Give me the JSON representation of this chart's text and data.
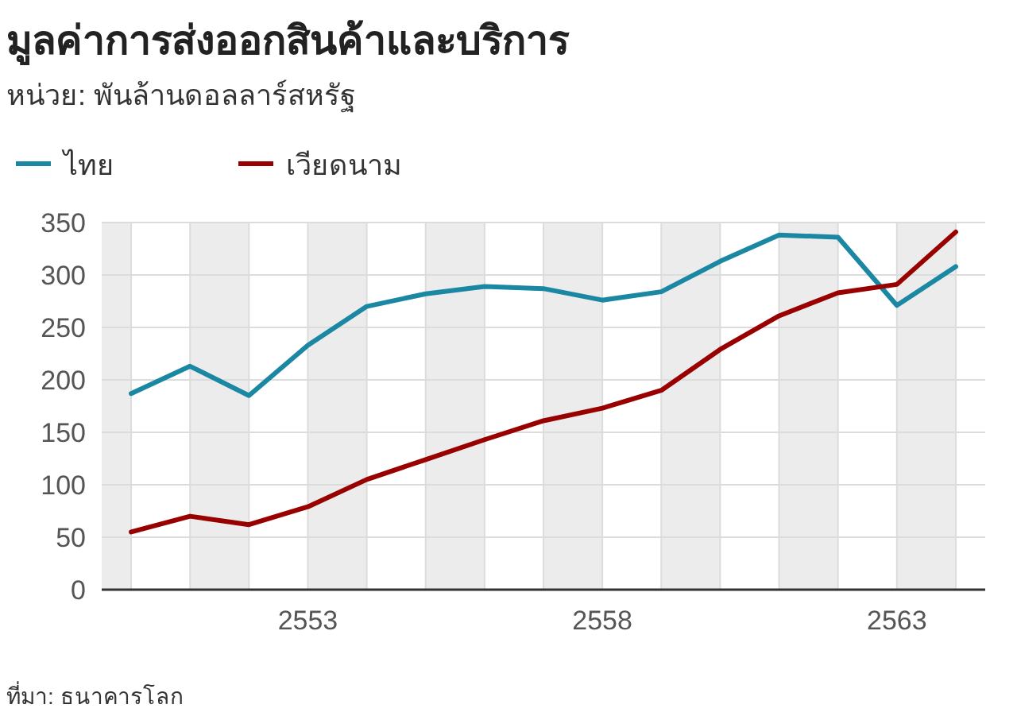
{
  "chart_data": {
    "type": "line",
    "title": "มูลค่าการส่งออกสินค้าและบริการ",
    "subtitle": "หน่วย: พันล้านดอลลาร์สหรัฐ",
    "x": [
      2550,
      2551,
      2552,
      2553,
      2554,
      2555,
      2556,
      2557,
      2558,
      2559,
      2560,
      2561,
      2562,
      2563,
      2564
    ],
    "series": [
      {
        "name": "ไทย",
        "color": "#1a87a3",
        "values": [
          187,
          213,
          185,
          233,
          270,
          282,
          289,
          287,
          276,
          284,
          313,
          338,
          336,
          271,
          308
        ]
      },
      {
        "name": "เวียดนาม",
        "color": "#990000",
        "values": [
          55,
          70,
          62,
          79,
          105,
          124,
          143,
          161,
          173,
          190,
          229,
          261,
          283,
          291,
          341
        ]
      }
    ],
    "xlim": [
      2549.5,
      2564.5
    ],
    "xticks": [
      {
        "value": 2550,
        "label": null
      },
      {
        "value": 2551,
        "label": null
      },
      {
        "value": 2552,
        "label": null
      },
      2553,
      {
        "value": 2554,
        "label": null
      },
      {
        "value": 2555,
        "label": null
      },
      {
        "value": 2556,
        "label": null
      },
      {
        "value": 2557,
        "label": null
      },
      2558,
      {
        "value": 2559,
        "label": null
      },
      {
        "value": 2560,
        "label": null
      },
      {
        "value": 2561,
        "label": null
      },
      {
        "value": 2562,
        "label": null
      },
      2563,
      {
        "value": 2564,
        "label": null
      }
    ],
    "ylim": [
      0,
      350
    ],
    "yticks": [
      0,
      50,
      100,
      150,
      200,
      250,
      300,
      350
    ],
    "bands": [
      {
        "axis": "x",
        "from": 2549.5,
        "to": 2550,
        "color": "#ececec"
      },
      {
        "axis": "x",
        "from": 2551,
        "to": 2552,
        "color": "#ececec"
      },
      {
        "axis": "x",
        "from": 2553,
        "to": 2554,
        "color": "#ececec"
      },
      {
        "axis": "x",
        "from": 2555,
        "to": 2556,
        "color": "#ececec"
      },
      {
        "axis": "x",
        "from": 2557,
        "to": 2558,
        "color": "#ececec"
      },
      {
        "axis": "x",
        "from": 2559,
        "to": 2560,
        "color": "#ececec"
      },
      {
        "axis": "x",
        "from": 2561,
        "to": 2562,
        "color": "#ececec"
      },
      {
        "axis": "x",
        "from": 2563,
        "to": 2564,
        "color": "#ececec"
      }
    ],
    "grid": true,
    "legend": "top left",
    "line_style": "solid",
    "marker": "none",
    "annotations": [
      "ที่มา: ธนาคารโลก"
    ]
  }
}
